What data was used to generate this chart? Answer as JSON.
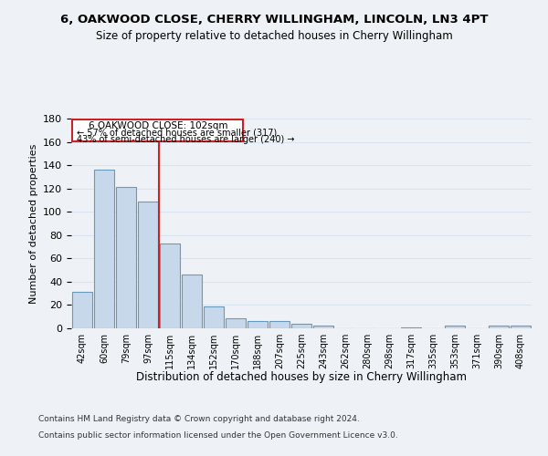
{
  "title_line1": "6, OAKWOOD CLOSE, CHERRY WILLINGHAM, LINCOLN, LN3 4PT",
  "title_line2": "Size of property relative to detached houses in Cherry Willingham",
  "xlabel": "Distribution of detached houses by size in Cherry Willingham",
  "ylabel": "Number of detached properties",
  "categories": [
    "42sqm",
    "60sqm",
    "79sqm",
    "97sqm",
    "115sqm",
    "134sqm",
    "152sqm",
    "170sqm",
    "188sqm",
    "207sqm",
    "225sqm",
    "243sqm",
    "262sqm",
    "280sqm",
    "298sqm",
    "317sqm",
    "335sqm",
    "353sqm",
    "371sqm",
    "390sqm",
    "408sqm"
  ],
  "values": [
    31,
    136,
    121,
    109,
    73,
    46,
    19,
    9,
    6,
    6,
    4,
    2,
    0,
    0,
    0,
    1,
    0,
    2,
    0,
    2,
    2
  ],
  "bar_color": "#c8d8eb",
  "bar_edge_color": "#6699bb",
  "vline_color": "#cc2222",
  "vline_x": 3.5,
  "box_text_line1": "6 OAKWOOD CLOSE: 102sqm",
  "box_text_line2": "← 57% of detached houses are smaller (317)",
  "box_text_line3": "43% of semi-detached houses are larger (240) →",
  "ylim": [
    0,
    180
  ],
  "yticks": [
    0,
    20,
    40,
    60,
    80,
    100,
    120,
    140,
    160,
    180
  ],
  "bg_color": "#eef2f7",
  "grid_color": "#d8e4f0",
  "footnote1": "Contains HM Land Registry data © Crown copyright and database right 2024.",
  "footnote2": "Contains public sector information licensed under the Open Government Licence v3.0."
}
